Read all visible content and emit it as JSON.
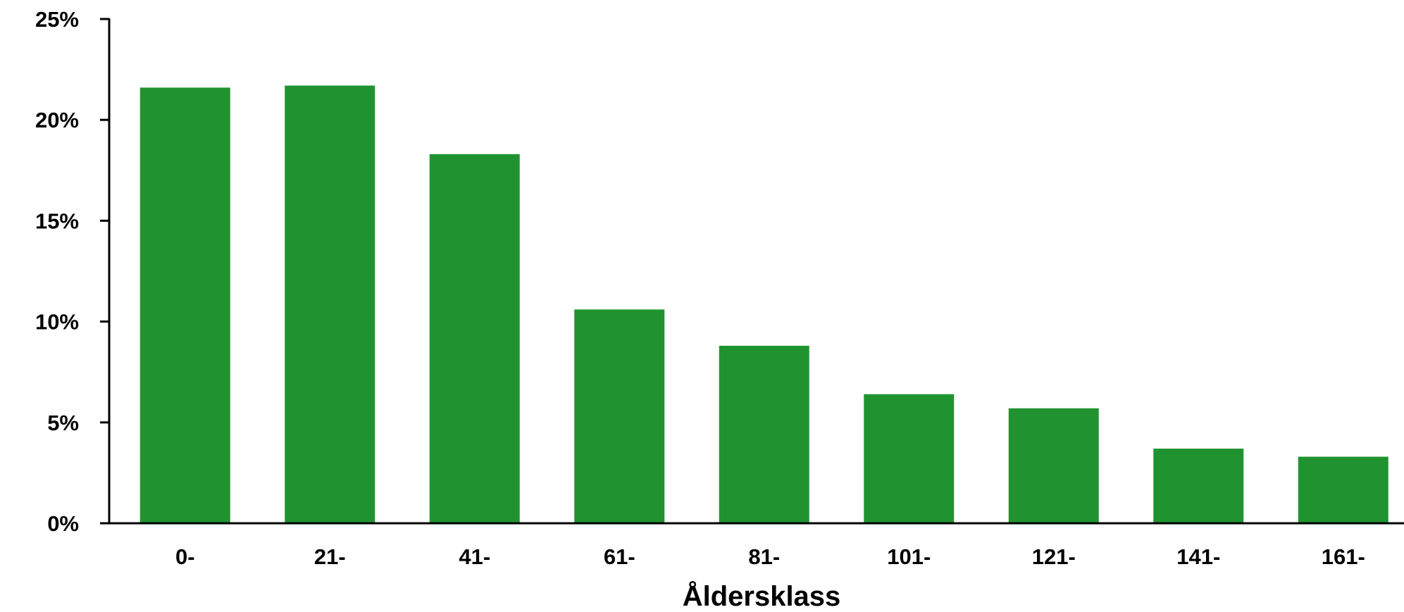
{
  "chart_data": {
    "type": "bar",
    "categories": [
      "0-",
      "21-",
      "41-",
      "61-",
      "81-",
      "101-",
      "121-",
      "141-",
      "161-"
    ],
    "values": [
      21.6,
      21.7,
      18.3,
      10.6,
      8.8,
      6.4,
      5.7,
      3.7,
      3.3
    ],
    "title": "",
    "xlabel": "Åldersklass",
    "ylabel": "",
    "ylim": [
      0,
      25
    ],
    "yticks": [
      0,
      5,
      10,
      15,
      20,
      25
    ],
    "ytick_labels": [
      "0%",
      "5%",
      "10%",
      "15%",
      "20%",
      "25%"
    ],
    "grid": false,
    "legend": "none",
    "colors": {
      "bar": "#209330",
      "axis": "#000000",
      "text": "#000000"
    }
  }
}
